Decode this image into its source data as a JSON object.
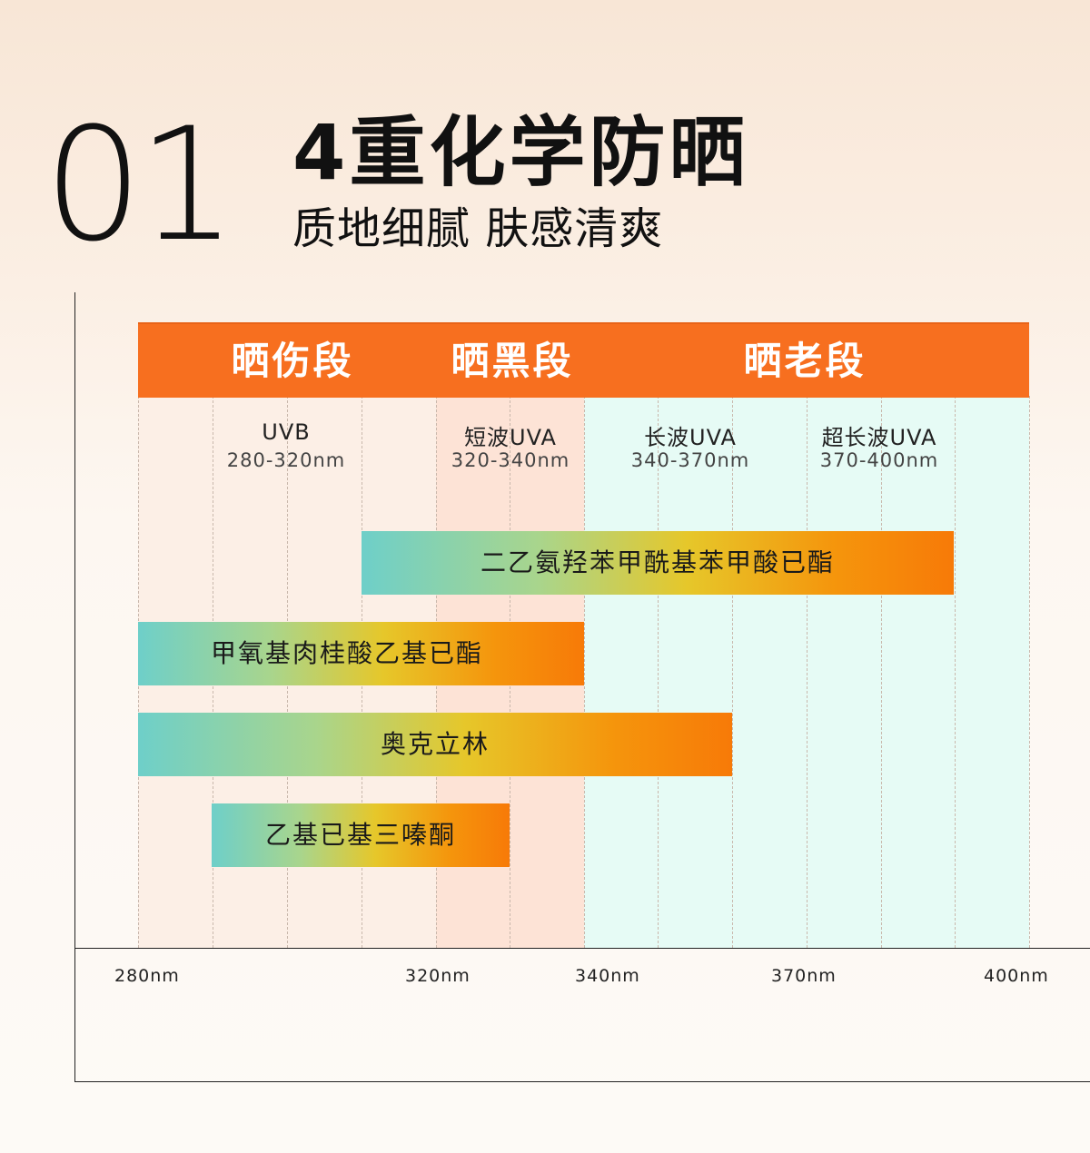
{
  "header": {
    "number": "01",
    "title": "4重化学防晒",
    "subtitle": "质地细腻 肤感清爽"
  },
  "bands": [
    {
      "label": "晒伤段"
    },
    {
      "label": "晒黑段"
    },
    {
      "label": "晒老段"
    }
  ],
  "segments": [
    {
      "name": "UVB",
      "range": "280-320nm"
    },
    {
      "name": "短波UVA",
      "range": "320-340nm"
    },
    {
      "name": "长波UVA",
      "range": "340-370nm"
    },
    {
      "name": "超长波UVA",
      "range": "370-400nm"
    }
  ],
  "filters": [
    {
      "label": "二乙氨羟苯甲酰基苯甲酸已酯"
    },
    {
      "label": "甲氧基肉桂酸乙基已酯"
    },
    {
      "label": "奥克立林"
    },
    {
      "label": "乙基已基三嗪酮"
    }
  ],
  "axis_ticks": [
    "280nm",
    "320nm",
    "340nm",
    "370nm",
    "400nm"
  ],
  "colors": {
    "band_header": "#f76f1f",
    "bar_start": "#6ecfc9",
    "bar_end": "#f77a08",
    "zone_uvb": "#fcefe6",
    "zone_short_uva": "#fde3d6",
    "zone_long_uva": "#e6fbf5"
  }
}
